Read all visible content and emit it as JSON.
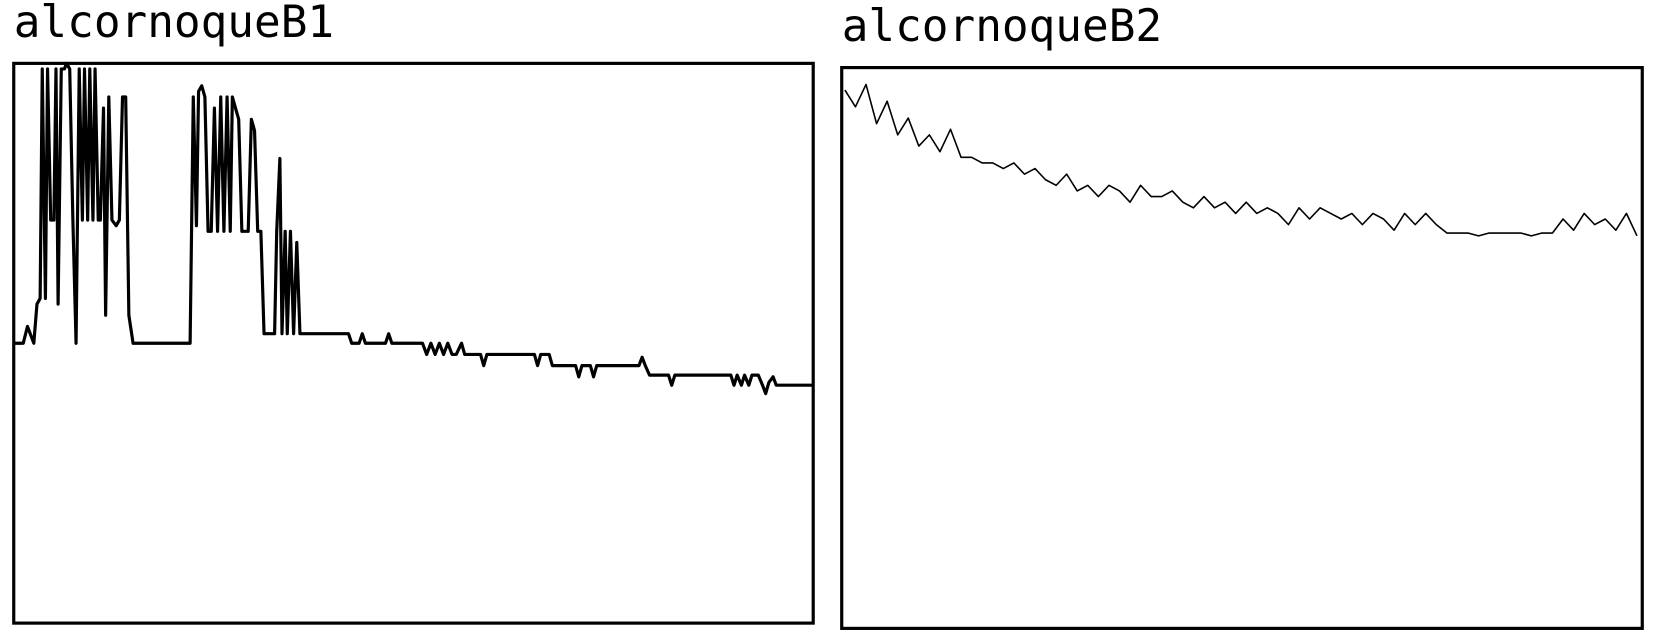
{
  "chart_data": [
    {
      "type": "line",
      "title": "alcornoqueB1",
      "color": "#000000",
      "line_width": 3,
      "xlim": [
        13,
        770
      ],
      "ylim": [
        0,
        100
      ],
      "x": [
        13,
        22,
        26,
        32,
        35,
        38,
        40,
        43,
        45,
        48,
        51,
        53,
        55,
        58,
        61,
        63,
        66,
        69,
        72,
        75,
        78,
        80,
        83,
        85,
        88,
        90,
        93,
        95,
        98,
        100,
        103,
        106,
        110,
        113,
        116,
        119,
        122,
        126,
        180,
        183,
        186,
        188,
        191,
        194,
        197,
        200,
        203,
        206,
        209,
        212,
        215,
        218,
        220,
        223,
        226,
        229,
        235,
        238,
        241,
        244,
        247,
        250,
        260,
        262,
        265,
        267,
        270,
        272,
        275,
        278,
        281,
        284,
        330,
        333,
        340,
        343,
        346,
        365,
        368,
        371,
        400,
        404,
        408,
        412,
        416,
        420,
        424,
        428,
        432,
        437,
        440,
        455,
        458,
        461,
        506,
        509,
        512,
        520,
        523,
        545,
        548,
        551,
        559,
        562,
        565,
        605,
        608,
        611,
        615,
        633,
        636,
        639,
        692,
        695,
        698,
        702,
        705,
        709,
        712,
        718,
        722,
        725,
        728,
        732,
        735,
        770
      ],
      "values": [
        50,
        50,
        53,
        50,
        57,
        58,
        99,
        58,
        99,
        72,
        72,
        99,
        57,
        99,
        99,
        100,
        99,
        72,
        50,
        99,
        72,
        99,
        72,
        99,
        72,
        99,
        72,
        72,
        92,
        55,
        94,
        72,
        71,
        72,
        94,
        94,
        55,
        50,
        50,
        94,
        71,
        95,
        96,
        94,
        70,
        70,
        92,
        70,
        94,
        70,
        94,
        70,
        94,
        92,
        90,
        70,
        70,
        90,
        88,
        70,
        70,
        51.7,
        51.7,
        70,
        83,
        51.7,
        70,
        51.7,
        70,
        51.7,
        68,
        51.7,
        51.7,
        50,
        50,
        51.7,
        50,
        50,
        51.7,
        50,
        50,
        48,
        50,
        48,
        50,
        48,
        50,
        48,
        48,
        50,
        48,
        48,
        46,
        48,
        48,
        46,
        48,
        48,
        46,
        46,
        44,
        46,
        46,
        44,
        46,
        46,
        47.5,
        46,
        44.3,
        44.3,
        42.5,
        44.3,
        44.3,
        42.5,
        44.3,
        42.5,
        44.3,
        42.5,
        44.3,
        44.3,
        42.5,
        41,
        43,
        44,
        42.5,
        42.5
      ]
    },
    {
      "type": "line",
      "title": "alcornoqueB2",
      "color": "#000000",
      "line_width": 1.5,
      "xlim": [
        797,
        1555
      ],
      "ylim": [
        0,
        100
      ],
      "x": [
        800,
        810,
        820,
        830,
        840,
        850,
        860,
        870,
        880,
        890,
        900,
        910,
        920,
        930,
        940,
        950,
        960,
        970,
        980,
        990,
        1000,
        1010,
        1020,
        1030,
        1040,
        1050,
        1060,
        1070,
        1080,
        1090,
        1100,
        1110,
        1120,
        1130,
        1140,
        1150,
        1160,
        1170,
        1180,
        1190,
        1200,
        1210,
        1220,
        1230,
        1240,
        1250,
        1260,
        1270,
        1280,
        1290,
        1300,
        1310,
        1320,
        1330,
        1340,
        1350,
        1360,
        1370,
        1380,
        1390,
        1400,
        1410,
        1420,
        1430,
        1440,
        1450,
        1460,
        1470,
        1480,
        1490,
        1500,
        1510,
        1520,
        1530,
        1540,
        1550
      ],
      "values": [
        96,
        93,
        97,
        90,
        94,
        88,
        91,
        86,
        88,
        85,
        89,
        84,
        84,
        83,
        83,
        82,
        83,
        81,
        82,
        80,
        79,
        81,
        78,
        79,
        77,
        79,
        78,
        76,
        79,
        77,
        77,
        78,
        76,
        75,
        77,
        75,
        76,
        74,
        76,
        74,
        75,
        74,
        72,
        75,
        73,
        75,
        74,
        73,
        74,
        72,
        74,
        73,
        71,
        74,
        72,
        74,
        72,
        70.5,
        70.5,
        70.5,
        70,
        70.5,
        70.5,
        70.5,
        70.5,
        70,
        70.5,
        70.5,
        73,
        71,
        74,
        72,
        73,
        71,
        74,
        70
      ]
    }
  ]
}
